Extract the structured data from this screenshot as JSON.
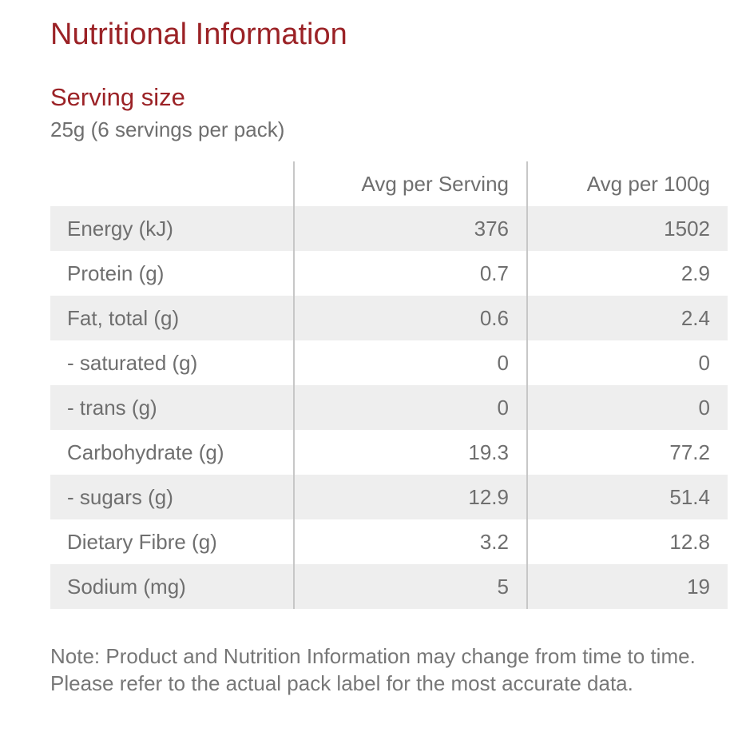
{
  "title": "Nutritional Information",
  "serving": {
    "heading": "Serving size",
    "value": "25g (6 servings per pack)"
  },
  "table": {
    "headers": [
      "",
      "Avg per Serving",
      "Avg per 100g"
    ],
    "rows": [
      {
        "name": "Energy (kJ)",
        "per_serving": "376",
        "per_100g": "1502"
      },
      {
        "name": "Protein (g)",
        "per_serving": "0.7",
        "per_100g": "2.9"
      },
      {
        "name": "Fat, total (g)",
        "per_serving": "0.6",
        "per_100g": "2.4"
      },
      {
        "name": "- saturated (g)",
        "per_serving": "0",
        "per_100g": "0"
      },
      {
        "name": "- trans (g)",
        "per_serving": "0",
        "per_100g": "0"
      },
      {
        "name": "Carbohydrate (g)",
        "per_serving": "19.3",
        "per_100g": "77.2"
      },
      {
        "name": "- sugars (g)",
        "per_serving": "12.9",
        "per_100g": "51.4"
      },
      {
        "name": "Dietary Fibre (g)",
        "per_serving": "3.2",
        "per_100g": "12.8"
      },
      {
        "name": "Sodium (mg)",
        "per_serving": "5",
        "per_100g": "19"
      }
    ]
  },
  "note": "Note: Product and Nutrition Information may change from time to time. Please refer to the actual pack label for the most accurate data.",
  "colors": {
    "heading": "#9b2226",
    "text": "#6f6f6f",
    "row_shade": "#eeeeee",
    "divider": "#c7c7c7"
  }
}
